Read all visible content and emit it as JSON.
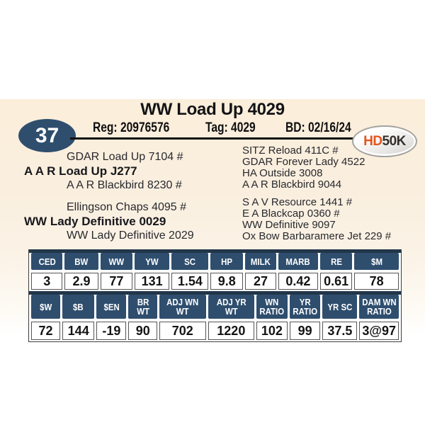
{
  "colors": {
    "navy": "#2f4e6e",
    "strip_navy": "#22364a",
    "cream": "#fbeeda",
    "logo_orange": "#e4551c",
    "rule_black": "#0f0f0f"
  },
  "header": {
    "lot_number": "37",
    "title": "WW Load Up 4029",
    "reg": "Reg: 20976576",
    "tag": "Tag: 4029",
    "bd": "BD: 02/16/24",
    "logo_hd": "HD",
    "logo_50k": "50K"
  },
  "pedigree": {
    "sire_line": {
      "sire_of_sire": "GDAR Load Up 7104 #",
      "name": "A A R Load Up J277",
      "dam_of_sire": "A A R Blackbird 8230 #"
    },
    "dam_line": {
      "sire_of_dam": "Ellingson Chaps 4095 #",
      "name": "WW Lady Definitive 0029",
      "dam_of_dam": "WW Lady Definitive 2029"
    },
    "right_column_top": [
      "SITZ Reload 411C #",
      "GDAR Forever Lady 4522",
      "HA Outside 3008",
      "A A R Blackbird 9044"
    ],
    "right_column_bottom": [
      "S A V Resource 1441 #",
      "E A Blackcap 0360 #",
      "WW Definitive 9097",
      "Ox Bow Barbaramere Jet 229 #"
    ]
  },
  "chart_data": {
    "type": "table",
    "title": "EPD / performance data for WW Load Up 4029",
    "rows": [
      {
        "headers": [
          "CED",
          "BW",
          "WW",
          "YW",
          "SC",
          "HP",
          "MILK",
          "MARB",
          "RE",
          "$M"
        ],
        "values": [
          "3",
          "2.9",
          "77",
          "131",
          "1.54",
          "9.8",
          "27",
          "0.42",
          "0.61",
          "78"
        ]
      },
      {
        "headers": [
          "$W",
          "$B",
          "$EN",
          "BR\nWT",
          "ADJ WN\nWT",
          "ADJ YR\nWT",
          "WN\nRATIO",
          "YR\nRATIO",
          "YR SC",
          "DAM WN\nRATIO"
        ],
        "values": [
          "72",
          "144",
          "-19",
          "90",
          "702",
          "1220",
          "102",
          "99",
          "37.5",
          "3@97"
        ]
      }
    ]
  }
}
